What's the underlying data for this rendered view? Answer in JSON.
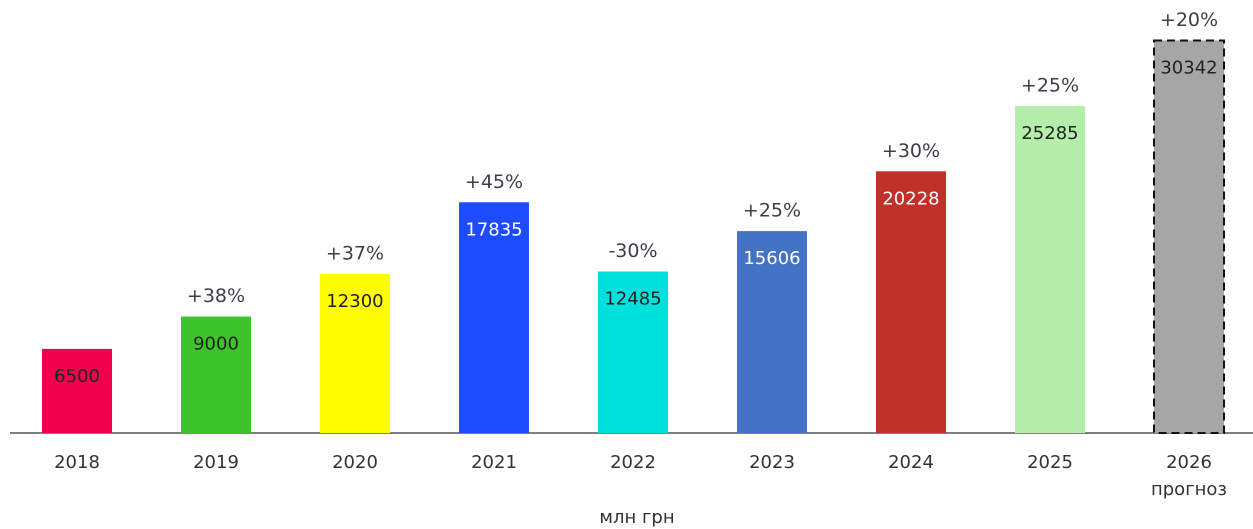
{
  "chart_data": {
    "type": "bar",
    "categories": [
      "2018",
      "2019",
      "2020",
      "2021",
      "2022",
      "2023",
      "2024",
      "2025",
      "2026"
    ],
    "forecast_label": "прогноз",
    "values": [
      6500,
      9000,
      12300,
      17835,
      12485,
      15606,
      20228,
      25285,
      30342
    ],
    "annotations": [
      null,
      "+38%",
      "+37%",
      "+45%",
      "-30%",
      "+25%",
      "+30%",
      "+25%",
      "+20%"
    ],
    "colors": [
      "#f0004f",
      "#3cc42a",
      "#fffe00",
      "#1f4bff",
      "#00e1de",
      "#4472c4",
      "#c0312a",
      "#b5eeaa",
      "#a6a6a6"
    ],
    "label_colors": [
      "#222222",
      "#222222",
      "#222222",
      "#ffffff",
      "#222222",
      "#ffffff",
      "#ffffff",
      "#222222",
      "#222222"
    ],
    "dashed": [
      false,
      false,
      false,
      false,
      false,
      false,
      false,
      false,
      true
    ],
    "x_label": "млн грн",
    "ylim": [
      0,
      32000
    ]
  }
}
